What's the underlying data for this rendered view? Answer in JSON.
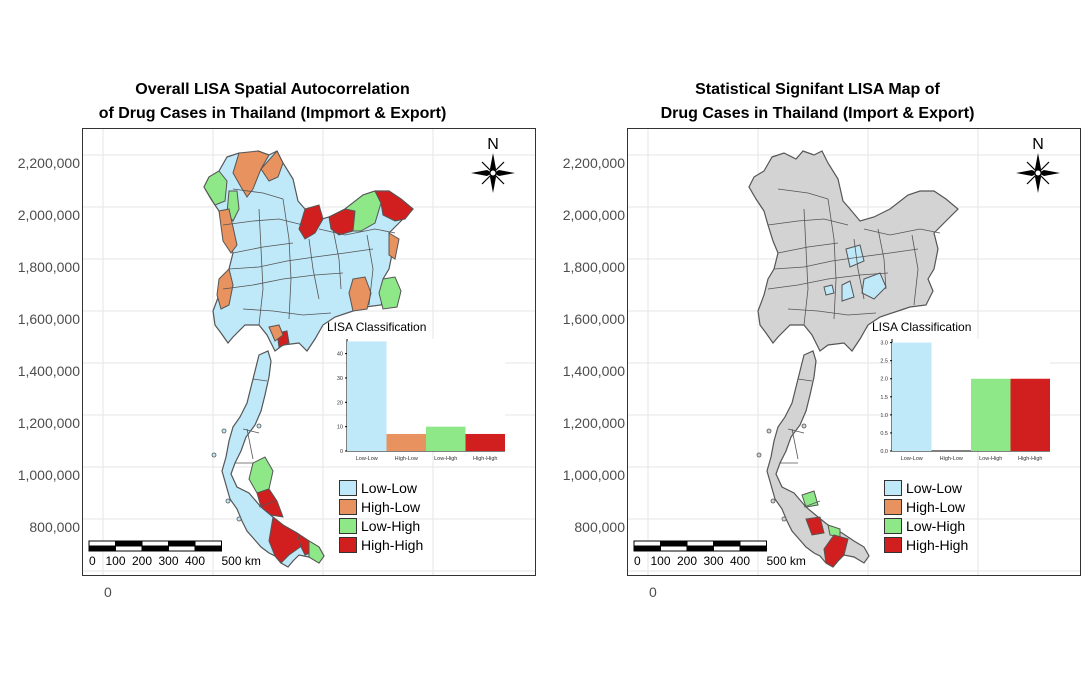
{
  "colors": {
    "low_low": "#bfe8f9",
    "high_low": "#e8935f",
    "low_high": "#8fe888",
    "high_high": "#d11f1f",
    "insignificant": "#d3d3d3",
    "boundary": "#555555"
  },
  "y_axis_ticks": [
    "2,200,000",
    "2,000,000",
    "1,800,000",
    "1,600,000",
    "1,400,000",
    "1,200,000",
    "1,000,000",
    "800,000"
  ],
  "x_axis_tick": "0",
  "legend_items": [
    {
      "label": "Low-Low",
      "color_key": "low_low"
    },
    {
      "label": "High-Low",
      "color_key": "high_low"
    },
    {
      "label": "Low-High",
      "color_key": "low_high"
    },
    {
      "label": "High-High",
      "color_key": "high_high"
    }
  ],
  "north_arrow_label": "N",
  "scale_bar": {
    "labels": [
      "0",
      "100",
      "200",
      "300",
      "400",
      "500 km"
    ]
  },
  "panels": [
    {
      "title_line1": "Overall LISA Spatial Autocorrelation",
      "title_line2": "of Drug Cases in Thailand (Impmort & Export)",
      "map_fill": "mixed",
      "inset_title": "LISA Classification",
      "chart_data": {
        "type": "bar",
        "title": "LISA Classification",
        "categories": [
          "Low-Low",
          "High-Low",
          "Low-High",
          "High-High"
        ],
        "values": [
          45,
          7,
          10,
          7
        ],
        "ylim": [
          0,
          46
        ],
        "y_ticks": [
          "0",
          "10",
          "20",
          "30",
          "40"
        ],
        "y_tick_values": [
          0,
          10,
          20,
          30,
          40
        ]
      }
    },
    {
      "title_line1": "Statistical Signifant LISA Map of",
      "title_line2": "Drug Cases in Thailand (Import & Export)",
      "map_fill": "significant",
      "inset_title": "LISA Classification",
      "chart_data": {
        "type": "bar",
        "title": "LISA Classification",
        "categories": [
          "Low-Low",
          "High-Low",
          "Low-High",
          "High-High"
        ],
        "values": [
          3,
          0,
          2,
          2
        ],
        "ylim": [
          0,
          3.1
        ],
        "y_ticks": [
          "0.0",
          "0.5",
          "1.0",
          "1.5",
          "2.0",
          "2.5",
          "3.0"
        ],
        "y_tick_values": [
          0,
          0.5,
          1,
          1.5,
          2,
          2.5,
          3
        ]
      }
    }
  ]
}
